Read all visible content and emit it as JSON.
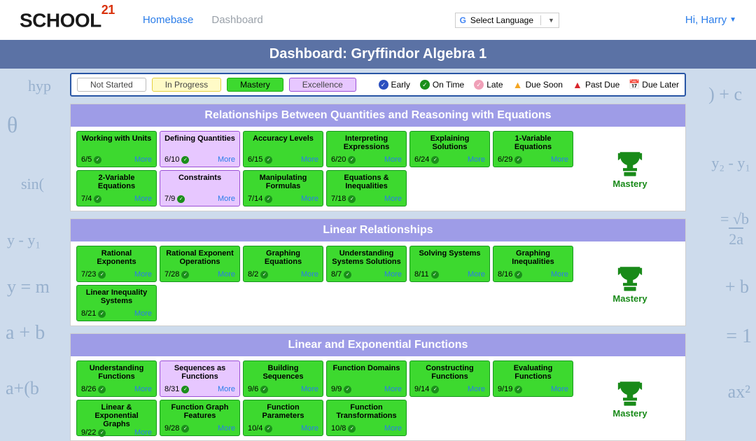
{
  "brand": {
    "name": "SCHOOL",
    "sup": "21"
  },
  "nav": {
    "homebase": "Homebase",
    "dashboard": "Dashboard"
  },
  "lang": {
    "label": "Select Language"
  },
  "user": {
    "greeting": "Hi, Harry"
  },
  "page_title": "Dashboard:  Gryffindor Algebra 1",
  "legend": {
    "levels": [
      "Not Started",
      "In Progress",
      "Mastery",
      "Excellence"
    ],
    "statuses": [
      "Early",
      "On Time",
      "Late",
      "Due Soon",
      "Past Due",
      "Due Later"
    ]
  },
  "trophy_label": "Mastery",
  "more_label": "More",
  "colors": {
    "mastery_bg": "#3dd92f",
    "mastery_border": "#17971e",
    "excellence_bg": "#e7c7ff",
    "excellence_border": "#9b4fd6",
    "section_hdr": "#9e9ce7",
    "titlebar": "#5b72a5",
    "link": "#2b7de9",
    "trophy": "#198a19"
  },
  "sections": [
    {
      "title": "Relationships Between Quantities and Reasoning with Equations",
      "cards": [
        {
          "title": "Working with Units",
          "date": "6/5",
          "status": "mastery"
        },
        {
          "title": "Defining Quantities",
          "date": "6/10",
          "status": "excellence"
        },
        {
          "title": "Accuracy Levels",
          "date": "6/15",
          "status": "mastery"
        },
        {
          "title": "Interpreting Expressions",
          "date": "6/20",
          "status": "mastery"
        },
        {
          "title": "Explaining Solutions",
          "date": "6/24",
          "status": "mastery"
        },
        {
          "title": "1-Variable Equations",
          "date": "6/29",
          "status": "mastery"
        },
        {
          "title": "2-Variable Equations",
          "date": "7/4",
          "status": "mastery"
        },
        {
          "title": "Constraints",
          "date": "7/9",
          "status": "excellence"
        },
        {
          "title": "Manipulating Formulas",
          "date": "7/14",
          "status": "mastery"
        },
        {
          "title": "Equations & Inequalities",
          "date": "7/18",
          "status": "mastery"
        }
      ]
    },
    {
      "title": "Linear Relationships",
      "cards": [
        {
          "title": "Rational Exponents",
          "date": "7/23",
          "status": "mastery"
        },
        {
          "title": "Rational Exponent Operations",
          "date": "7/28",
          "status": "mastery"
        },
        {
          "title": "Graphing Equations",
          "date": "8/2",
          "status": "mastery"
        },
        {
          "title": "Understanding Systems Solutions",
          "date": "8/7",
          "status": "mastery"
        },
        {
          "title": "Solving Systems",
          "date": "8/11",
          "status": "mastery"
        },
        {
          "title": "Graphing Inequalities",
          "date": "8/16",
          "status": "mastery"
        },
        {
          "title": "Linear Inequality Systems",
          "date": "8/21",
          "status": "mastery"
        }
      ]
    },
    {
      "title": "Linear and Exponential Functions",
      "cards": [
        {
          "title": "Understanding Functions",
          "date": "8/26",
          "status": "mastery"
        },
        {
          "title": "Sequences as Functions",
          "date": "8/31",
          "status": "excellence"
        },
        {
          "title": "Building Sequences",
          "date": "9/6",
          "status": "mastery"
        },
        {
          "title": "Function Domains",
          "date": "9/9",
          "status": "mastery"
        },
        {
          "title": "Constructing Functions",
          "date": "9/14",
          "status": "mastery"
        },
        {
          "title": "Evaluating Functions",
          "date": "9/19",
          "status": "mastery"
        },
        {
          "title": "Linear & Exponential Graphs",
          "date": "9/22",
          "status": "mastery"
        },
        {
          "title": "Function Graph Features",
          "date": "9/28",
          "status": "mastery"
        },
        {
          "title": "Function Parameters",
          "date": "10/4",
          "status": "mastery"
        },
        {
          "title": "Function Transformations",
          "date": "10/8",
          "status": "mastery"
        }
      ]
    }
  ]
}
